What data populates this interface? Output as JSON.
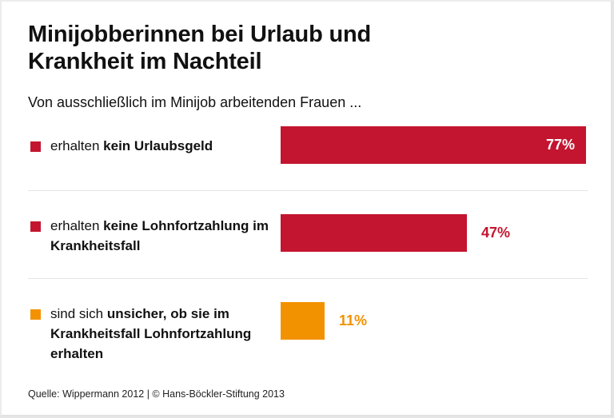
{
  "header": {
    "title_line1": "Minijobberinnen bei Urlaub und",
    "title_line2": "Krankheit im Nachteil",
    "subtitle": "Von ausschließlich im Minijob arbeitenden Frauen ..."
  },
  "colors": {
    "red": "#c3152f",
    "orange": "#f39200",
    "text": "#111111"
  },
  "source": "Quelle: Wippermann 2012 | © Hans-Böckler-Stiftung 2013",
  "chart_data": {
    "type": "bar",
    "orientation": "horizontal",
    "title": "Minijobberinnen bei Urlaub und Krankheit im Nachteil",
    "subtitle": "Von ausschließlich im Minijob arbeitenden Frauen ...",
    "unit": "%",
    "xlim": [
      0,
      77
    ],
    "grid": false,
    "categories": [
      "erhalten kein Urlaubsgeld",
      "erhalten keine Lohnfortzahlung im Krankheitsfall",
      "sind sich unsicher, ob sie im Krankheitsfall Lohnfortzahlung erhalten"
    ],
    "values": [
      77,
      47,
      11
    ],
    "bars": [
      {
        "pre": "erhalten ",
        "bold": "kein Urlaubsgeld",
        "value": 77,
        "value_label": "77%",
        "color": "#c3152f",
        "label_inside": true
      },
      {
        "pre": "erhalten ",
        "bold": "keine Lohnfortzahlung im Krankheitsfall",
        "value": 47,
        "value_label": "47%",
        "color": "#c3152f",
        "label_inside": false
      },
      {
        "pre": "sind sich ",
        "bold": "unsicher, ob sie im Krankheitsfall Lohnfortzahlung erhalten",
        "value": 11,
        "value_label": "11%",
        "color": "#f39200",
        "label_inside": false
      }
    ],
    "source": "Quelle: Wippermann 2012 | © Hans-Böckler-Stiftung 2013"
  }
}
